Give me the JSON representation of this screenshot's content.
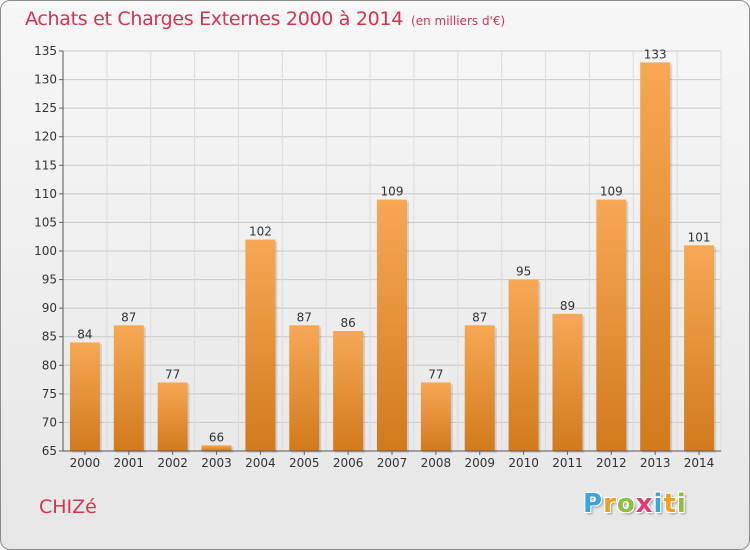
{
  "header": {
    "title": "Achats et Charges Externes 2000 à 2014",
    "subtitle": "(en milliers d'€)"
  },
  "footer": {
    "place": "CHIZé",
    "logo": [
      "P",
      "r",
      "o",
      "x",
      "i",
      "t",
      "i"
    ],
    "logo_colors": [
      "#3aa6dd",
      "#f0a020",
      "#8cbf3f",
      "#e63a6f",
      "#3aa6dd",
      "#f0a020",
      "#8cbf3f"
    ]
  },
  "chart_data": {
    "type": "bar",
    "categories": [
      "2000",
      "2001",
      "2002",
      "2003",
      "2004",
      "2005",
      "2006",
      "2007",
      "2008",
      "2009",
      "2010",
      "2011",
      "2012",
      "2013",
      "2014"
    ],
    "values": [
      84,
      87,
      77,
      66,
      102,
      87,
      86,
      109,
      77,
      87,
      95,
      89,
      109,
      133,
      101
    ],
    "ylim": [
      65,
      135
    ],
    "yticks": [
      65,
      70,
      75,
      80,
      85,
      90,
      95,
      100,
      105,
      110,
      115,
      120,
      125,
      130,
      135
    ],
    "grid": true,
    "bar_color_top": "#f7a855",
    "bar_color_bottom": "#d27a1c",
    "title": "Achats et Charges Externes 2000 à 2014"
  }
}
